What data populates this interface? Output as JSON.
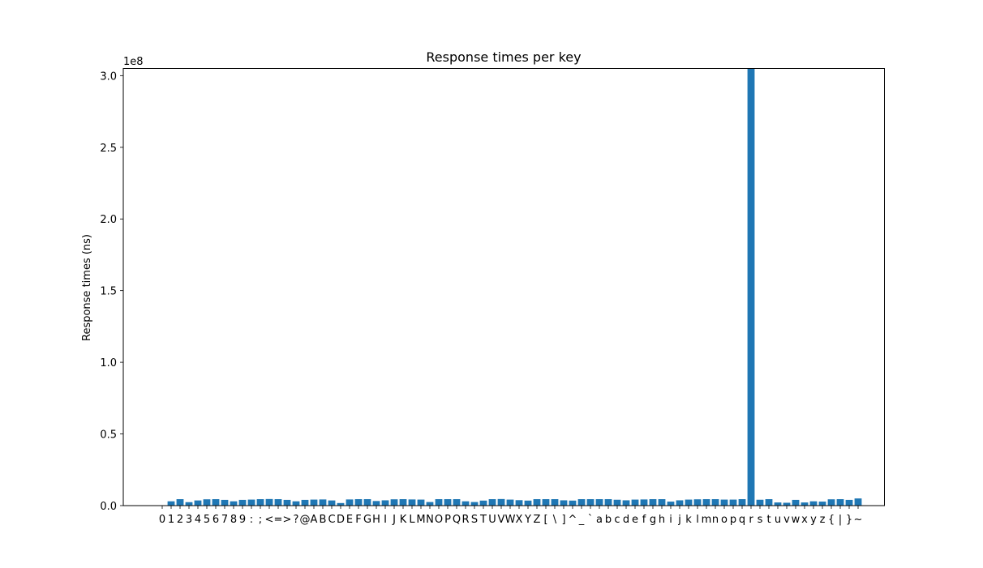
{
  "chart_data": {
    "type": "bar",
    "title": "Response times per key",
    "xlabel": "",
    "ylabel": "Response times (ns)",
    "y_offset_label": "1e8",
    "y_scale": 100000000,
    "ylim": [
      0,
      305000000
    ],
    "yticks": [
      0,
      50000000,
      100000000,
      150000000,
      200000000,
      250000000,
      300000000
    ],
    "ytick_labels": [
      "0.0",
      "0.5",
      "1.0",
      "1.5",
      "2.0",
      "2.5",
      "3.0"
    ],
    "bar_color": "#1f77b4",
    "grid": false,
    "categories": [
      "0",
      "1",
      "2",
      "3",
      "4",
      "5",
      "6",
      "7",
      "8",
      "9",
      ":",
      ";",
      "<",
      "=",
      ">",
      "?",
      "@",
      "A",
      "B",
      "C",
      "D",
      "E",
      "F",
      "G",
      "H",
      "I",
      "J",
      "K",
      "L",
      "M",
      "N",
      "O",
      "P",
      "Q",
      "R",
      "S",
      "T",
      "U",
      "V",
      "W",
      "X",
      "Y",
      "Z",
      "[",
      "\\",
      "]",
      "^",
      "_",
      "`",
      "a",
      "b",
      "c",
      "d",
      "e",
      "f",
      "g",
      "h",
      "i",
      "j",
      "k",
      "l",
      "m",
      "n",
      "o",
      "p",
      "q",
      "r",
      "s",
      "t",
      "u",
      "v",
      "w",
      "x",
      "y",
      "z",
      "{",
      "|",
      "}",
      "~"
    ],
    "values": [
      0,
      3000000,
      4500000,
      2400000,
      3600000,
      4400000,
      4500000,
      4000000,
      3000000,
      4000000,
      4200000,
      4500000,
      4600000,
      4500000,
      4000000,
      3000000,
      4000000,
      4200000,
      4300000,
      3600000,
      1800000,
      4300000,
      4500000,
      4500000,
      3200000,
      3700000,
      4400000,
      4500000,
      4300000,
      4200000,
      2500000,
      4500000,
      4500000,
      4500000,
      3000000,
      2500000,
      3500000,
      4500000,
      4600000,
      4200000,
      3800000,
      3500000,
      4500000,
      4500000,
      4500000,
      3700000,
      3500000,
      4500000,
      4500000,
      4500000,
      4500000,
      4100000,
      3700000,
      4200000,
      4300000,
      4500000,
      4500000,
      2800000,
      3700000,
      4200000,
      4400000,
      4500000,
      4500000,
      4200000,
      4200000,
      4500000,
      305000000,
      4100000,
      4500000,
      2200000,
      2000000,
      4000000,
      2200000,
      3000000,
      2800000,
      4400000,
      4500000,
      4000000,
      5000000
    ]
  }
}
